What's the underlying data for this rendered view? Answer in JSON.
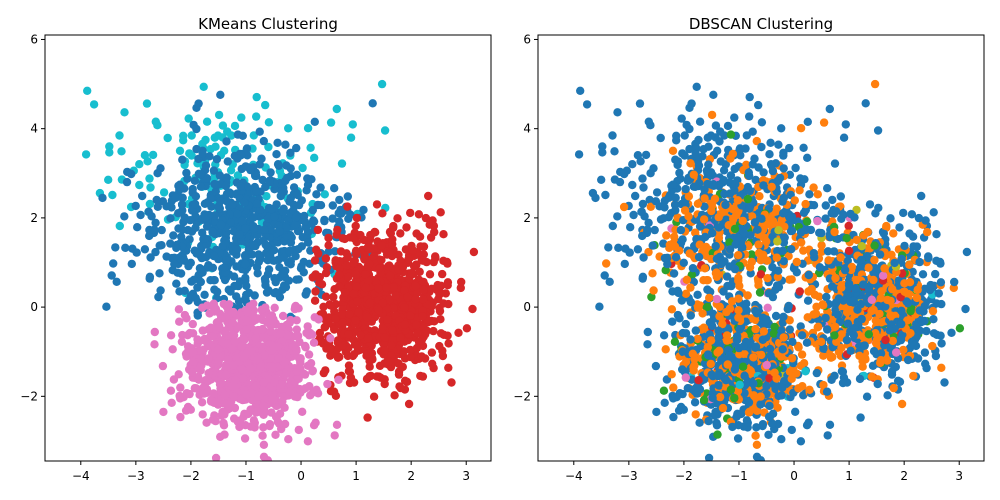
{
  "chart_data": [
    {
      "type": "scatter",
      "title": "KMeans Clustering",
      "xlabel": "",
      "ylabel": "",
      "xlim": [
        -4.65,
        3.45
      ],
      "ylim": [
        -3.45,
        6.1
      ],
      "xticks": [
        -4,
        -3,
        -2,
        -1,
        0,
        1,
        2,
        3
      ],
      "yticks": [
        -2,
        0,
        2,
        4,
        6
      ],
      "xtick_labels": [
        "−4",
        "−3",
        "−2",
        "−1",
        "0",
        "1",
        "2",
        "3"
      ],
      "ytick_labels": [
        "−2",
        "0",
        "2",
        "4",
        "6"
      ],
      "legend": "none",
      "grid": false,
      "clusters": [
        {
          "color": "#1f77b4",
          "center": [
            -1.1,
            1.7
          ],
          "spread": [
            0.9,
            0.9
          ],
          "count": 700,
          "region": "upper-left"
        },
        {
          "color": "#17becf",
          "center": [
            -1.2,
            3.0
          ],
          "spread": [
            1.2,
            1.0
          ],
          "count": 160,
          "region": "top"
        },
        {
          "color": "#d62728",
          "center": [
            1.5,
            0.0
          ],
          "spread": [
            0.6,
            0.85
          ],
          "count": 850,
          "region": "right"
        },
        {
          "color": "#e377c2",
          "center": [
            -1.0,
            -1.3
          ],
          "spread": [
            0.6,
            0.7
          ],
          "count": 850,
          "region": "lower-left"
        }
      ]
    },
    {
      "type": "scatter",
      "title": "DBSCAN Clustering",
      "xlabel": "",
      "ylabel": "",
      "xlim": [
        -4.65,
        3.45
      ],
      "ylim": [
        -3.45,
        6.1
      ],
      "xticks": [
        -4,
        -3,
        -2,
        -1,
        0,
        1,
        2,
        3
      ],
      "yticks": [
        -2,
        0,
        2,
        4,
        6
      ],
      "xtick_labels": [
        "−4",
        "−3",
        "−2",
        "−1",
        "0",
        "1",
        "2",
        "3"
      ],
      "ytick_labels": [
        "−2",
        "0",
        "2",
        "4",
        "6"
      ],
      "legend": "none",
      "grid": false,
      "clusters": [
        {
          "color": "#1f77b4",
          "share": 0.46
        },
        {
          "color": "#ff7f0e",
          "share": 0.42
        },
        {
          "color": "#2ca02c",
          "share": 0.07
        },
        {
          "color": "#d62728",
          "share": 0.02
        },
        {
          "color": "#e377c2",
          "share": 0.015
        },
        {
          "color": "#bcbd22",
          "share": 0.01
        },
        {
          "color": "#17becf",
          "share": 0.005
        }
      ]
    }
  ]
}
